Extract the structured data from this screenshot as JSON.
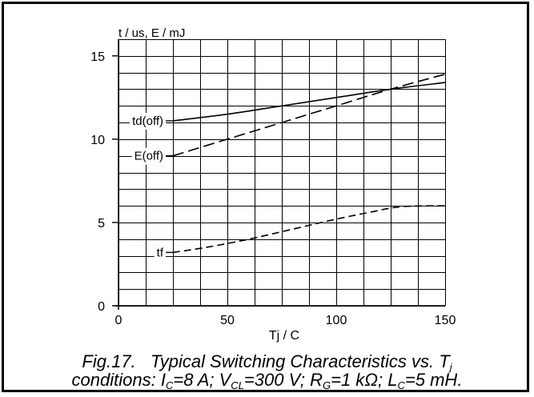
{
  "chart_data": {
    "type": "line",
    "ylabel": "t / us, E / mJ",
    "xlabel": "Tj / C",
    "xlim": [
      0,
      150
    ],
    "ylim": [
      0,
      16
    ],
    "x_ticks": [
      "0",
      "50",
      "100",
      "150"
    ],
    "y_ticks": [
      "0",
      "5",
      "10",
      "15"
    ],
    "grid": true,
    "series": [
      {
        "name": "td(off)",
        "style": "solid",
        "x": [
          25,
          50,
          75,
          100,
          125,
          150
        ],
        "y": [
          11.1,
          11.5,
          12.0,
          12.5,
          13.0,
          13.4
        ]
      },
      {
        "name": "E(off)",
        "style": "dashed",
        "x": [
          25,
          50,
          75,
          100,
          125,
          150
        ],
        "y": [
          9.0,
          10.0,
          11.0,
          12.0,
          13.0,
          13.9
        ]
      },
      {
        "name": "tf",
        "style": "dashed",
        "x": [
          25,
          40,
          60,
          80,
          100,
          115,
          130,
          150
        ],
        "y": [
          3.2,
          3.5,
          4.0,
          4.6,
          5.2,
          5.6,
          5.95,
          6.0
        ]
      }
    ]
  },
  "caption": {
    "line1_text": "Fig.17.   Typical Switching Characteristics vs. T",
    "line1_sub": "j",
    "line2": {
      "p1": "conditions: I",
      "s1": "C",
      "p2": "=8 A; V",
      "s2": "CL",
      "p3": "=300 V; R",
      "s3": "G",
      "p4": "=1 kΩ; L",
      "s4": "C",
      "p5": "=5 mH."
    }
  }
}
